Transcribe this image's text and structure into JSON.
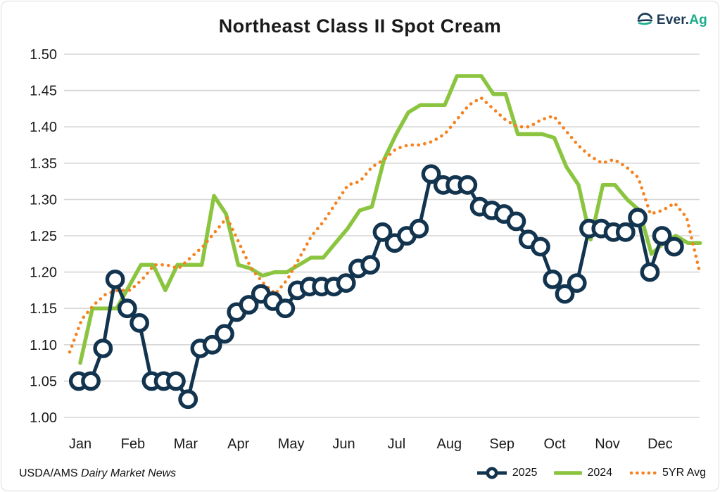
{
  "header": {
    "logo": {
      "text_primary": "Ever.",
      "text_accent": "Ag",
      "navy": "#1c3a56",
      "teal": "#18ac8d"
    }
  },
  "footer": {
    "source_prefix": "USDA/AMS",
    "source_name": "Dairy Market News"
  },
  "chart_data": {
    "type": "line",
    "title": "Northeast Class II Spot Cream",
    "xlabel": "",
    "ylabel": "",
    "grid": "horizontal",
    "gridline_color": "#d6d6d6",
    "legend_position": "bottom-right",
    "x_axis": {
      "tick_labels": [
        "Jan",
        "Feb",
        "Mar",
        "Apr",
        "May",
        "Jun",
        "Jul",
        "Aug",
        "Sep",
        "Oct",
        "Nov",
        "Dec"
      ]
    },
    "y_axis": {
      "min": 1.0,
      "max": 1.5,
      "step": 0.05,
      "tick_labels": [
        "1.50",
        "1.45",
        "1.40",
        "1.35",
        "1.30",
        "1.25",
        "1.20",
        "1.15",
        "1.10",
        "1.05",
        "1.00"
      ]
    },
    "series": [
      {
        "name": "2025",
        "type": "line+markers",
        "marker": "open-circle",
        "color": "#12344f",
        "start_month": -0.03,
        "step_month": 0.23055,
        "values": [
          1.05,
          1.05,
          1.095,
          1.19,
          1.15,
          1.13,
          1.05,
          1.05,
          1.05,
          1.025,
          1.095,
          1.1,
          1.115,
          1.145,
          1.155,
          1.17,
          1.16,
          1.15,
          1.175,
          1.18,
          1.18,
          1.18,
          1.185,
          1.205,
          1.21,
          1.255,
          1.24,
          1.25,
          1.26,
          1.335,
          1.32,
          1.32,
          1.32,
          1.29,
          1.285,
          1.28,
          1.27,
          1.245,
          1.235,
          1.19,
          1.17,
          1.185,
          1.26,
          1.26,
          1.255,
          1.255,
          1.275,
          1.2,
          1.25,
          1.235
        ]
      },
      {
        "name": "2024",
        "type": "line",
        "color": "#8bc540",
        "start_month": 0.0,
        "step_month": 0.23055,
        "values": [
          1.075,
          1.15,
          1.15,
          1.15,
          1.18,
          1.21,
          1.21,
          1.175,
          1.21,
          1.21,
          1.21,
          1.305,
          1.28,
          1.21,
          1.205,
          1.195,
          1.2,
          1.2,
          1.21,
          1.22,
          1.22,
          1.24,
          1.26,
          1.285,
          1.29,
          1.355,
          1.39,
          1.42,
          1.43,
          1.43,
          1.43,
          1.47,
          1.47,
          1.47,
          1.445,
          1.445,
          1.39,
          1.39,
          1.39,
          1.385,
          1.345,
          1.32,
          1.245,
          1.32,
          1.32,
          1.3,
          1.285,
          1.225,
          1.24,
          1.25,
          1.24,
          1.24
        ]
      },
      {
        "name": "5YR Avg",
        "type": "dotted-line",
        "color": "#f5821f",
        "start_month": -0.2,
        "step_month": 0.2295,
        "values": [
          1.09,
          1.135,
          1.155,
          1.17,
          1.175,
          1.175,
          1.19,
          1.21,
          1.21,
          1.205,
          1.22,
          1.235,
          1.255,
          1.275,
          1.24,
          1.205,
          1.185,
          1.17,
          1.19,
          1.22,
          1.25,
          1.27,
          1.295,
          1.32,
          1.325,
          1.345,
          1.355,
          1.37,
          1.375,
          1.375,
          1.38,
          1.39,
          1.41,
          1.43,
          1.44,
          1.425,
          1.41,
          1.4,
          1.4,
          1.41,
          1.415,
          1.395,
          1.375,
          1.36,
          1.35,
          1.355,
          1.345,
          1.33,
          1.28,
          1.285,
          1.295,
          1.275,
          1.205
        ]
      }
    ]
  }
}
